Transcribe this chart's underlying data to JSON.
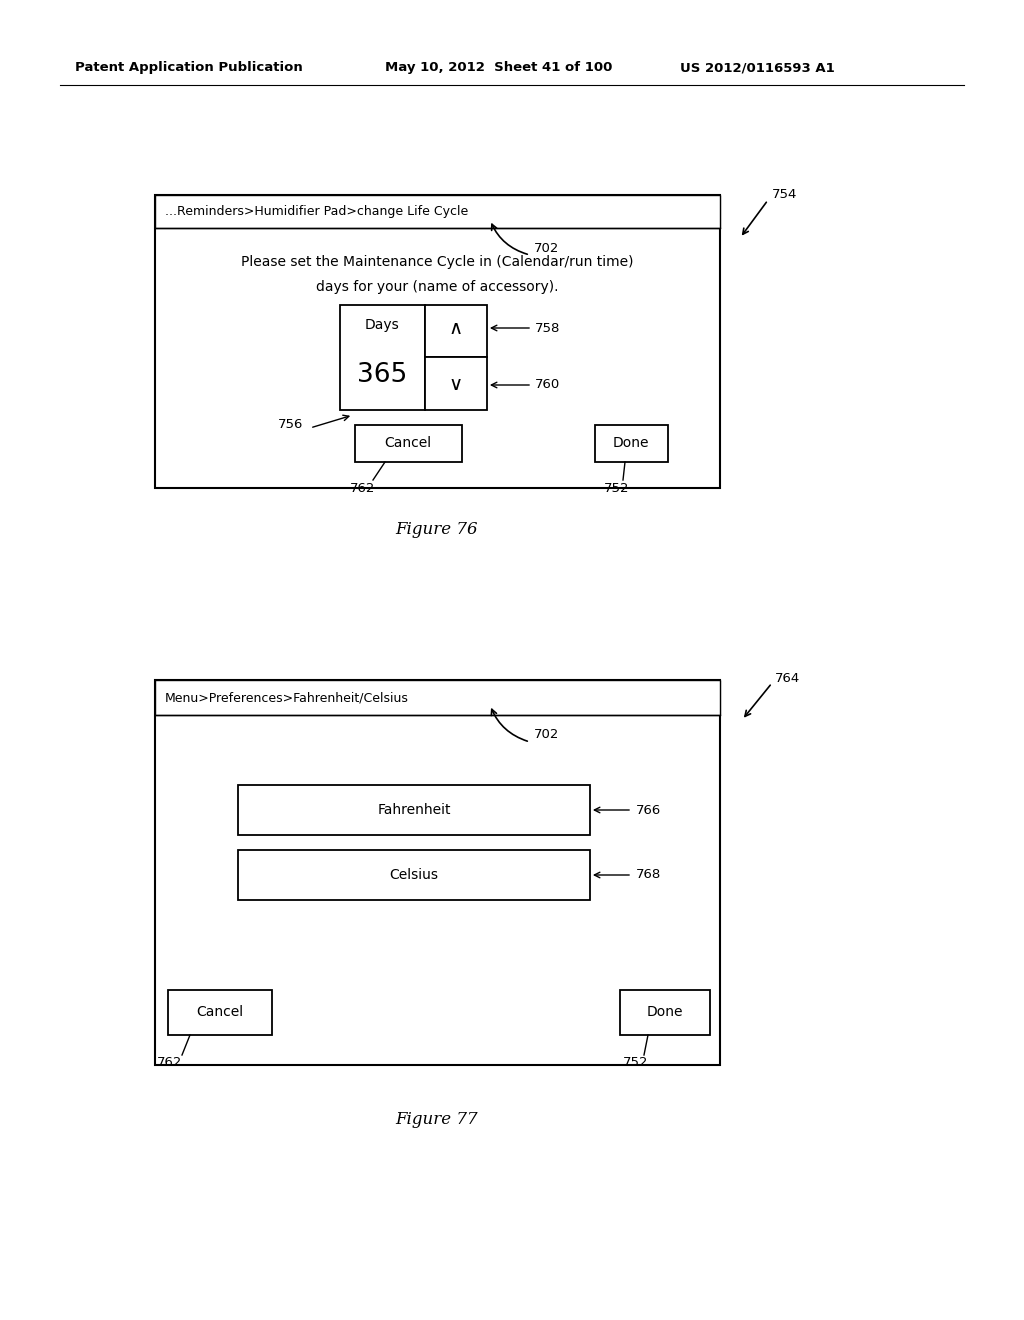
{
  "bg_color": "#ffffff",
  "header_line1": "Patent Application Publication",
  "header_line2": "May 10, 2012  Sheet 41 of 100",
  "header_line3": "US 2012/0116593 A1",
  "fig76": {
    "title_bar_text": "...Reminders>Humidifier Pad>change Life Cycle",
    "body_text1": "Please set the Maintenance Cycle in (Calendar/run time)",
    "body_text2": "days for your (name of accessory).",
    "days_label": "Days",
    "days_value": "365",
    "up_arrow": "∧",
    "down_arrow": "∨",
    "cancel_text": "Cancel",
    "done_text": "Done",
    "label_702": "702",
    "label_754": "754",
    "label_756": "756",
    "label_758": "758",
    "label_760": "760",
    "label_762": "762",
    "label_752": "752",
    "caption": "Figure 76"
  },
  "fig77": {
    "title_bar_text": "Menu>Preferences>Fahrenheit/Celsius",
    "fahrenheit_text": "Fahrenheit",
    "celsius_text": "Celsius",
    "cancel_text": "Cancel",
    "done_text": "Done",
    "label_702": "702",
    "label_764": "764",
    "label_766": "766",
    "label_768": "768",
    "label_762": "762",
    "label_752": "752",
    "caption": "Figure 77"
  }
}
